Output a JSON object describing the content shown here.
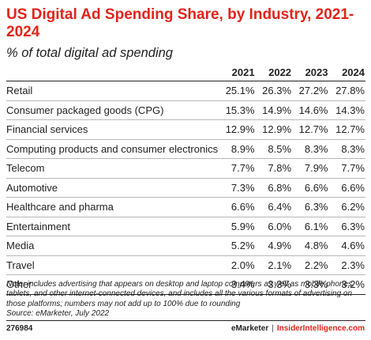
{
  "title": "US Digital Ad Spending Share, by Industry, 2021-2024",
  "subtitle": "% of total digital ad spending",
  "chart_data": {
    "type": "table",
    "title": "US Digital Ad Spending Share, by Industry, 2021-2024",
    "subtitle": "% of total digital ad spending",
    "columns": [
      "2021",
      "2022",
      "2023",
      "2024"
    ],
    "rows": [
      {
        "label": "Retail",
        "values": [
          "25.1%",
          "26.3%",
          "27.2%",
          "27.8%"
        ]
      },
      {
        "label": "Consumer packaged goods (CPG)",
        "values": [
          "15.3%",
          "14.9%",
          "14.6%",
          "14.3%"
        ]
      },
      {
        "label": "Financial services",
        "values": [
          "12.9%",
          "12.9%",
          "12.7%",
          "12.7%"
        ]
      },
      {
        "label": "Computing products and consumer electronics",
        "values": [
          "8.9%",
          "8.5%",
          "8.3%",
          "8.3%"
        ]
      },
      {
        "label": "Telecom",
        "values": [
          "7.7%",
          "7.8%",
          "7.9%",
          "7.7%"
        ]
      },
      {
        "label": "Automotive",
        "values": [
          "7.3%",
          "6.8%",
          "6.6%",
          "6.6%"
        ]
      },
      {
        "label": "Healthcare and pharma",
        "values": [
          "6.6%",
          "6.4%",
          "6.3%",
          "6.2%"
        ]
      },
      {
        "label": "Entertainment",
        "values": [
          "5.9%",
          "6.0%",
          "6.1%",
          "6.3%"
        ]
      },
      {
        "label": "Media",
        "values": [
          "5.2%",
          "4.9%",
          "4.8%",
          "4.6%"
        ]
      },
      {
        "label": "Travel",
        "values": [
          "2.0%",
          "2.1%",
          "2.2%",
          "2.3%"
        ]
      },
      {
        "label": "Other",
        "values": [
          "3.4%",
          "3.3%",
          "3.3%",
          "3.2%"
        ]
      }
    ]
  },
  "note": "Note: includes advertising that appears on desktop and laptop computers as well as mobile phones, tablets, and other internet-connected devices, and includes all the various formats of advertising on those platforms; numbers may not add up to 100% due to rounding",
  "source": "Source: eMarketer, July 2022",
  "figure_id": "276984",
  "brand": {
    "emarketer": "eMarketer",
    "separator": "|",
    "insider": "InsiderIntelligence.com"
  },
  "colors": {
    "accent": "#e2231a",
    "text": "#222222",
    "rule": "#b8b8b8"
  }
}
